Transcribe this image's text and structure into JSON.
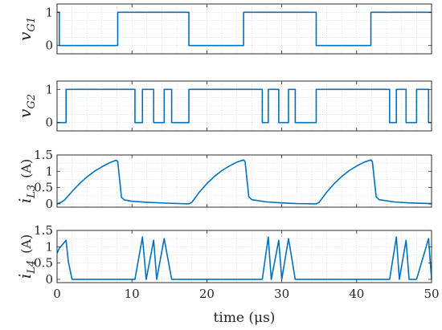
{
  "chart_data": [
    {
      "type": "line",
      "ylabel": "vG1",
      "ylabel_main": "v",
      "ylabel_sub": "G1",
      "ylabel_unit": "",
      "xlim": [
        0,
        50
      ],
      "ylim": [
        -0.25,
        1.25
      ],
      "xticks": [
        0,
        10,
        20,
        30,
        40,
        50
      ],
      "yticks": [
        0,
        1
      ],
      "yticklabels": [
        "0",
        "1"
      ],
      "grid": true,
      "color": "#0072BD",
      "series": [
        {
          "name": "",
          "x": [
            0,
            0.3,
            0.3,
            8.1,
            8.1,
            17.6,
            17.6,
            24.9,
            24.9,
            34.6,
            34.6,
            41.9,
            41.9,
            50
          ],
          "y": [
            1,
            1,
            0,
            0,
            1,
            1,
            0,
            0,
            1,
            1,
            0,
            0,
            1,
            1
          ]
        }
      ]
    },
    {
      "type": "line",
      "ylabel": "vG2",
      "ylabel_main": "v",
      "ylabel_sub": "G2",
      "ylabel_unit": "",
      "xlim": [
        0,
        50
      ],
      "ylim": [
        -0.25,
        1.25
      ],
      "xticks": [
        0,
        10,
        20,
        30,
        40,
        50
      ],
      "yticks": [
        0,
        1
      ],
      "yticklabels": [
        "0",
        "1"
      ],
      "grid": true,
      "color": "#0072BD",
      "series": [
        {
          "name": "",
          "x": [
            0,
            1.2,
            1.2,
            10.4,
            10.4,
            11.4,
            11.4,
            12.9,
            12.9,
            14.3,
            14.3,
            15.3,
            15.3,
            17.6,
            17.6,
            27.4,
            27.4,
            28.2,
            28.2,
            29.6,
            29.6,
            30.9,
            30.9,
            31.8,
            31.8,
            34.6,
            34.6,
            44.4,
            44.4,
            45.3,
            45.3,
            46.6,
            46.6,
            48.0,
            48.0,
            49.6,
            49.6,
            50
          ],
          "y": [
            0,
            0,
            1,
            1,
            0,
            0,
            1,
            1,
            0,
            0,
            1,
            1,
            0,
            0,
            1,
            1,
            0,
            0,
            1,
            1,
            0,
            0,
            1,
            1,
            0,
            0,
            1,
            1,
            0,
            0,
            1,
            1,
            0,
            0,
            1,
            1,
            0,
            0
          ]
        }
      ]
    },
    {
      "type": "line",
      "ylabel": "iL3 (A)",
      "ylabel_main": "i",
      "ylabel_sub": "L3",
      "ylabel_unit": "(A)",
      "xlim": [
        0,
        50
      ],
      "ylim": [
        -0.1,
        1.5
      ],
      "xticks": [
        0,
        10,
        20,
        30,
        40,
        50
      ],
      "yticks": [
        0,
        0.5,
        1,
        1.5
      ],
      "yticklabels": [
        "0",
        "0.5",
        "1",
        "1.5"
      ],
      "grid": true,
      "color": "#0072BD",
      "series": [
        {
          "name": "",
          "x": [
            0,
            0.5,
            1,
            2,
            3,
            4,
            5,
            6,
            7,
            7.9,
            8.1,
            8.6,
            9,
            10,
            12,
            15,
            17.6,
            18,
            19,
            20,
            21,
            22,
            23,
            24,
            24.9,
            25.1,
            25.6,
            26,
            28,
            30,
            32,
            34.6,
            35,
            36,
            37,
            38,
            39,
            40,
            41,
            41.9,
            42.1,
            42.6,
            43,
            45,
            47,
            50
          ],
          "y": [
            0,
            0.04,
            0.12,
            0.38,
            0.62,
            0.83,
            1.0,
            1.14,
            1.26,
            1.34,
            1.3,
            0.2,
            0.12,
            0.08,
            0.05,
            0.02,
            0.0,
            0.05,
            0.36,
            0.62,
            0.84,
            1.02,
            1.16,
            1.28,
            1.35,
            1.3,
            0.22,
            0.13,
            0.06,
            0.03,
            0.01,
            0.0,
            0.05,
            0.36,
            0.62,
            0.84,
            1.02,
            1.16,
            1.28,
            1.35,
            1.3,
            0.22,
            0.13,
            0.06,
            0.03,
            0.01
          ]
        }
      ]
    },
    {
      "type": "line",
      "ylabel": "iL4 (A)",
      "ylabel_main": "i",
      "ylabel_sub": "L4",
      "ylabel_unit": "(A)",
      "xlim": [
        0,
        50
      ],
      "ylim": [
        -0.1,
        1.5
      ],
      "xticks": [
        0,
        10,
        20,
        30,
        40,
        50
      ],
      "yticks": [
        0,
        0.5,
        1,
        1.5
      ],
      "yticklabels": [
        "0",
        "0.5",
        "1",
        "1.5"
      ],
      "xticklabels": [
        "0",
        "10",
        "20",
        "30",
        "40",
        "50"
      ],
      "xlabel": "time (μs)",
      "grid": true,
      "color": "#0072BD",
      "series": [
        {
          "name": "",
          "x": [
            0,
            0.3,
            1.2,
            1.5,
            2.0,
            10.4,
            11.4,
            11.9,
            12.9,
            13.3,
            14.3,
            15.3,
            15.6,
            17.6,
            27.4,
            28.2,
            28.6,
            29.6,
            30.0,
            30.9,
            31.8,
            32.2,
            34.6,
            44.4,
            45.3,
            45.7,
            46.6,
            47.0,
            48.0,
            49.6,
            50
          ],
          "y": [
            0.8,
            0.95,
            1.2,
            0.55,
            0.0,
            0.0,
            1.3,
            0.0,
            1.2,
            0.0,
            1.25,
            0.0,
            0.0,
            0.0,
            0.0,
            1.3,
            0.0,
            1.2,
            0.0,
            1.25,
            0.0,
            0.0,
            0.0,
            0.0,
            1.3,
            0.0,
            1.2,
            0.0,
            0.0,
            1.25,
            0.0
          ]
        }
      ]
    }
  ]
}
